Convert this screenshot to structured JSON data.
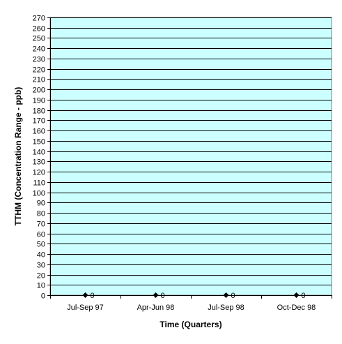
{
  "chart_data": {
    "type": "line",
    "title": "",
    "xlabel": "Time (Quarters)",
    "ylabel": "TTHM (Concentration Range - ppb)",
    "categories": [
      "Jul-Sep 97",
      "Apr-Jun 98",
      "Jul-Sep 98",
      "Oct-Dec 98"
    ],
    "series": [
      {
        "values": [
          0,
          0,
          0,
          0
        ],
        "marker": "diamond",
        "data_labels": [
          "0",
          "0",
          "0",
          "0"
        ]
      }
    ],
    "ylim": [
      0,
      270
    ],
    "ytick_step": 10,
    "grid": true,
    "legend": "none",
    "colors": {
      "plot_background": "#ccffff",
      "gridline": "#000000",
      "marker": "#000000"
    }
  }
}
